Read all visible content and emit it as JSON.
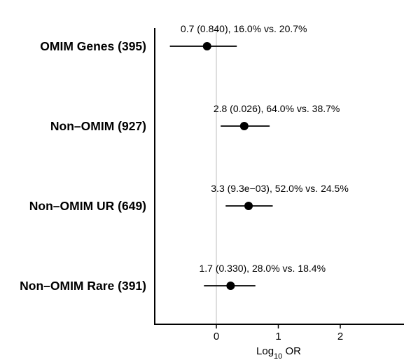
{
  "chart_data": {
    "type": "scatter",
    "subtype": "forest-plot",
    "xlabel": {
      "main": "Log",
      "sub": "10",
      "suffix": " OR"
    },
    "xlim": [
      -1.0,
      3.0
    ],
    "xticks": [
      "0",
      "1",
      "2"
    ],
    "xtick_values": [
      0,
      1,
      2
    ],
    "reference_line": 0,
    "rows": [
      {
        "label": "OMIM Genes (395)",
        "estimate": -0.15,
        "ci": [
          -0.75,
          0.33
        ],
        "annotation": "0.7 (0.840), 16.0% vs. 20.7%"
      },
      {
        "label": "Non–OMIM (927)",
        "estimate": 0.45,
        "ci": [
          0.07,
          0.86
        ],
        "annotation": "2.8 (0.026), 64.0% vs. 38.7%"
      },
      {
        "label": "Non–OMIM UR (649)",
        "estimate": 0.52,
        "ci": [
          0.15,
          0.91
        ],
        "annotation": "3.3 (9.3e−03), 52.0% vs. 24.5%"
      },
      {
        "label": "Non–OMIM Rare (391)",
        "estimate": 0.23,
        "ci": [
          -0.2,
          0.63
        ],
        "annotation": "1.7 (0.330), 28.0% vs. 18.4%"
      }
    ],
    "colors": {
      "point": "#000000",
      "axis": "#000000",
      "reference": "#c8c8c8"
    }
  }
}
